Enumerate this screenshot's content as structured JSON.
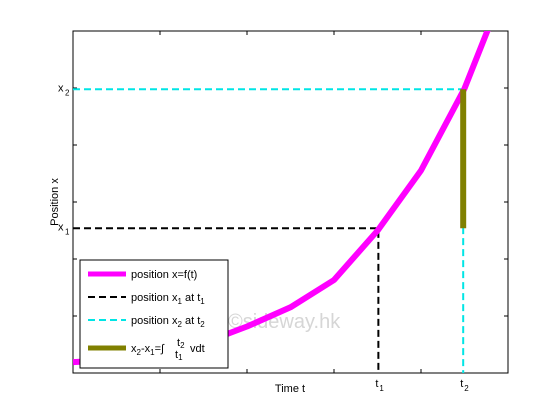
{
  "chart_data": {
    "type": "line",
    "title": "",
    "xlabel": "Time t",
    "ylabel": "Position x",
    "xlim": [
      0,
      1
    ],
    "ylim": [
      0,
      1
    ],
    "grid": false,
    "x_ticks": [
      {
        "value": 0.702,
        "label": "t",
        "sub": "1"
      },
      {
        "value": 0.897,
        "label": "t",
        "sub": "2"
      }
    ],
    "y_ticks": [
      {
        "value": 0.489,
        "label": "x",
        "sub": "1"
      },
      {
        "value": 0.997,
        "label": "x",
        "sub": "2"
      }
    ],
    "series": [
      {
        "name": "position x=f(t)",
        "color": "#ff00ff",
        "x": [
          0.0,
          0.1,
          0.2,
          0.3,
          0.4,
          0.5,
          0.6,
          0.7,
          0.8,
          0.9,
          1.0
        ],
        "y": [
          0.0,
          0.008,
          0.032,
          0.07,
          0.13,
          0.2,
          0.3,
          0.48,
          0.7,
          1.0,
          1.4
        ]
      }
    ],
    "annotations": [
      {
        "name": "position x1 at t1",
        "color": "#000000",
        "style": "dashed",
        "t": 0.702,
        "x": 0.489
      },
      {
        "name": "position x2 at t2",
        "color": "#00e5e5",
        "style": "dashed",
        "t": 0.897,
        "x": 0.997
      },
      {
        "name": "x2-x1 integral",
        "color": "#808000",
        "style": "bar",
        "t": 0.897,
        "from": 0.489,
        "to": 0.997
      }
    ],
    "legend": {
      "position": "bottom-left",
      "entries": [
        {
          "text": "position x=f(t)",
          "color": "#ff00ff",
          "style": "solid-thick"
        },
        {
          "parts": [
            "position x",
            "1",
            " at t",
            "1"
          ],
          "color": "#000000",
          "style": "dashed"
        },
        {
          "parts": [
            "position x",
            "2",
            " at t",
            "2"
          ],
          "color": "#00e5e5",
          "style": "dashed"
        },
        {
          "parts": [
            "x",
            "2",
            "-x",
            "1",
            "=∫",
            "t",
            "2",
            "t",
            "1",
            " vdt"
          ],
          "color": "#808000",
          "style": "solid-thick"
        }
      ]
    },
    "watermark": "©sideway.hk"
  }
}
